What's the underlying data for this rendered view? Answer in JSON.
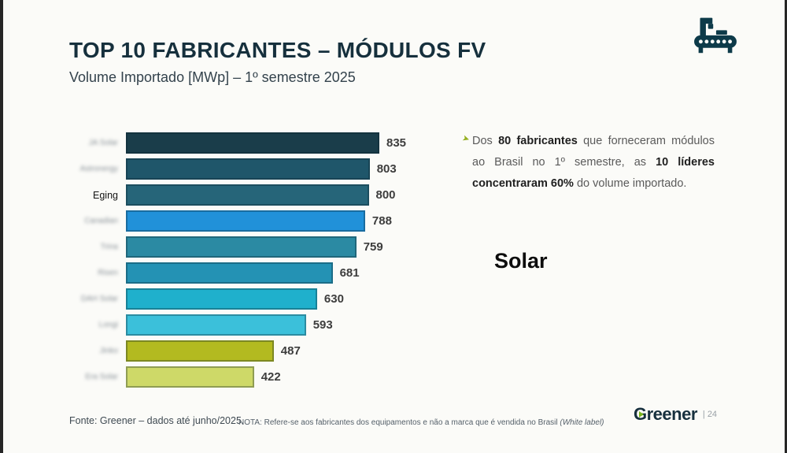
{
  "slide": {
    "title": "TOP 10 FABRICANTES – MÓDULOS FV",
    "subtitle": "Volume Importado [MWp] – 1º semestre 2025"
  },
  "colors": {
    "title_color": "#16303d",
    "icon_color": "#0d3a49",
    "bullet_color": "#93ae1d",
    "value_label_color": "#3d3d3d",
    "background": "#fbfbf8"
  },
  "chart_data": {
    "type": "bar",
    "orientation": "horizontal",
    "title": "TOP 10 FABRICANTES – MÓDULOS FV",
    "subtitle": "Volume Importado [MWp] – 1º semestre 2025",
    "unit": "MWp",
    "xlim": [
      0,
      835
    ],
    "grid": false,
    "legend": "none",
    "categories": [
      "JA Solar",
      "Astronergy",
      "Eging",
      "Canadian",
      "Trina",
      "Risen",
      "DAH Solar",
      "Longi",
      "Jinko",
      "Era Solar"
    ],
    "categories_blurred": [
      true,
      true,
      false,
      true,
      true,
      true,
      true,
      true,
      true,
      true
    ],
    "values": [
      835,
      803,
      800,
      788,
      759,
      681,
      630,
      593,
      487,
      422
    ],
    "value_labels": [
      "835",
      "803",
      "800",
      "788",
      "759",
      "681",
      "630",
      "593",
      "487",
      "422"
    ],
    "bar_colors": [
      "#1a3d4a",
      "#1f566a",
      "#266579",
      "#2191d9",
      "#2b8aa3",
      "#2492b4",
      "#1fb0cc",
      "#3bc0da",
      "#b3ba20",
      "#ced968"
    ]
  },
  "insight": {
    "bullet_icon": "green-arrow-bullet",
    "segments": [
      {
        "text": "Dos ",
        "bold": false
      },
      {
        "text": "80 fabricantes",
        "bold": true
      },
      {
        "text": " que forneceram módulos ao Brasil no 1º semestre, as ",
        "bold": false
      },
      {
        "text": "10 líderes concentraram 60%",
        "bold": true
      },
      {
        "text": " do volume importado.",
        "bold": false
      }
    ]
  },
  "annotation": {
    "text": "Solar"
  },
  "footer": {
    "source": "Fonte: Greener – dados até junho/2025.",
    "note_prefix": "NOTA: Refere-se aos fabricantes dos equipamentos e não a marca que é vendida no Brasil ",
    "note_italic": "(White label)",
    "logo": "Greener",
    "page": "24"
  }
}
